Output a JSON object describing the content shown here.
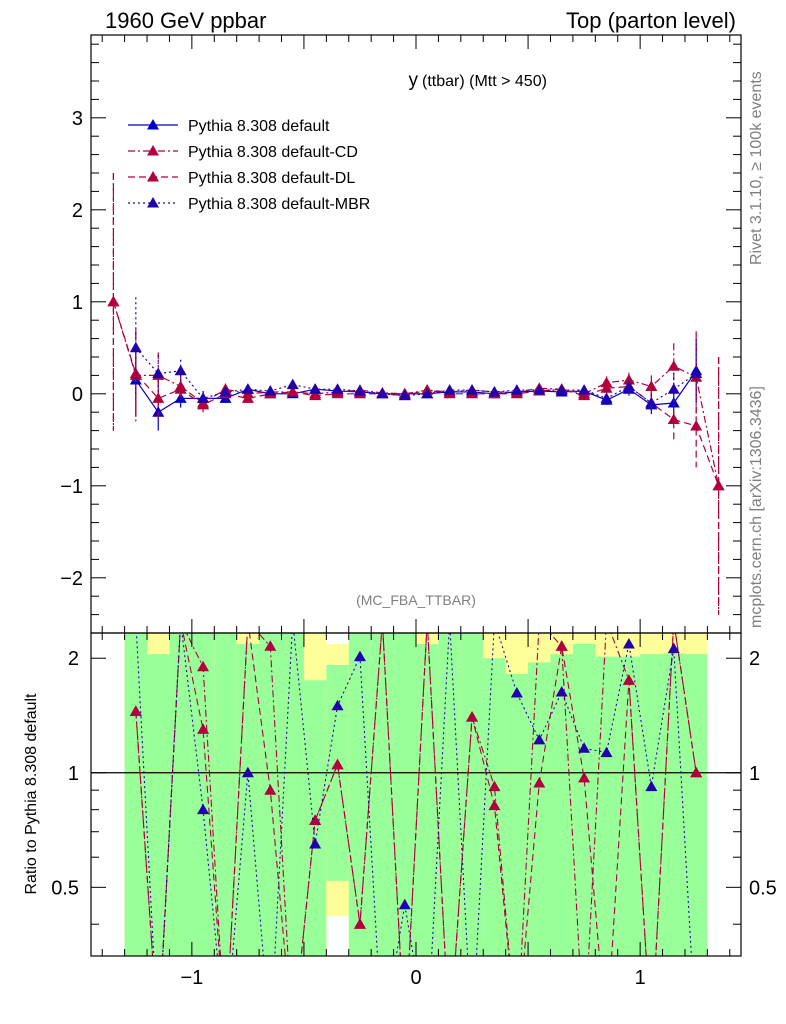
{
  "header": {
    "left": "1960 GeV ppbar",
    "right": "Top (parton level)"
  },
  "side_labels": {
    "rivet": "Rivet 3.1.10, ≥ 100k events",
    "mcplots": "mcplots.cern.ch [arXiv:1306.3436]"
  },
  "chart_data": [
    {
      "type": "line",
      "title": "y (ttbar) (Mtt > 450)",
      "title_main": "y",
      "title_sub": "(ttbar) (Mtt > 450)",
      "watermark": "(MC_FBA_TTBAR)",
      "xlim": [
        -1.45,
        1.45
      ],
      "ylim": [
        -2.6,
        3.9
      ],
      "x_ticks": [
        -1,
        0,
        1
      ],
      "x_tick_labels": [
        "−1",
        "0",
        "1"
      ],
      "y_ticks": [
        -2,
        -1,
        0,
        1,
        2,
        3
      ],
      "y_tick_labels": [
        "−2",
        "−1",
        "0",
        "1",
        "2",
        "3"
      ],
      "legend_position": "top-left",
      "series": [
        {
          "name": "Pythia 8.308 default",
          "color": "#0000cc",
          "style": "solid",
          "x": [
            -1.25,
            -1.15,
            -1.05,
            -0.95,
            -0.85,
            -0.75,
            -0.65,
            -0.55,
            -0.45,
            -0.35,
            -0.25,
            -0.15,
            -0.05,
            0.05,
            0.15,
            0.25,
            0.35,
            0.45,
            0.55,
            0.65,
            0.75,
            0.85,
            0.95,
            1.05,
            1.15,
            1.25
          ],
          "y": [
            0.15,
            -0.2,
            -0.05,
            -0.05,
            -0.05,
            0.05,
            0.0,
            0.0,
            0.05,
            0.03,
            0.02,
            0.0,
            0.0,
            0.0,
            0.02,
            0.02,
            0.0,
            0.02,
            0.03,
            0.02,
            0.03,
            -0.07,
            0.05,
            -0.12,
            -0.1,
            0.25
          ],
          "err": [
            0.4,
            0.2,
            0.1,
            0.08,
            0.05,
            0.05,
            0.04,
            0.04,
            0.03,
            0.03,
            0.03,
            0.03,
            0.03,
            0.03,
            0.03,
            0.03,
            0.03,
            0.03,
            0.04,
            0.04,
            0.04,
            0.05,
            0.07,
            0.1,
            0.2,
            0.35
          ]
        },
        {
          "name": "Pythia 8.308 default-CD",
          "color": "#b0003e",
          "style": "dashdot",
          "x": [
            -1.35,
            -1.25,
            -1.15,
            -1.05,
            -0.95,
            -0.85,
            -0.75,
            -0.65,
            -0.55,
            -0.45,
            -0.35,
            -0.25,
            -0.15,
            -0.05,
            0.05,
            0.15,
            0.25,
            0.35,
            0.45,
            0.55,
            0.65,
            0.75,
            0.85,
            0.95,
            1.05,
            1.15,
            1.25,
            1.35
          ],
          "y": [
            1.0,
            0.2,
            0.2,
            0.08,
            -0.1,
            0.05,
            0.0,
            0.02,
            0.02,
            0.0,
            0.02,
            0.04,
            0.01,
            0.0,
            0.04,
            0.02,
            0.04,
            0.02,
            0.02,
            0.06,
            0.05,
            0.0,
            0.12,
            0.15,
            0.08,
            0.3,
            0.18,
            -1.0
          ],
          "err": [
            1.4,
            0.5,
            0.25,
            0.12,
            0.08,
            0.06,
            0.05,
            0.04,
            0.04,
            0.04,
            0.03,
            0.03,
            0.03,
            0.03,
            0.03,
            0.03,
            0.03,
            0.03,
            0.03,
            0.04,
            0.04,
            0.05,
            0.07,
            0.08,
            0.12,
            0.25,
            0.5,
            1.4
          ]
        },
        {
          "name": "Pythia 8.308 default-DL",
          "color": "#b0003e",
          "style": "dashed",
          "x": [
            -1.35,
            -1.25,
            -1.15,
            -1.05,
            -0.95,
            -0.85,
            -0.75,
            -0.65,
            -0.55,
            -0.45,
            -0.35,
            -0.25,
            -0.15,
            -0.05,
            0.05,
            0.15,
            0.25,
            0.35,
            0.45,
            0.55,
            0.65,
            0.75,
            0.85,
            0.95,
            1.05,
            1.15,
            1.25,
            1.35
          ],
          "y": [
            1.0,
            0.22,
            -0.05,
            0.05,
            -0.12,
            0.0,
            -0.05,
            0.0,
            0.02,
            -0.02,
            0.0,
            0.0,
            0.0,
            -0.02,
            0.04,
            0.0,
            0.0,
            0.0,
            0.0,
            0.03,
            0.05,
            -0.02,
            0.06,
            0.08,
            -0.1,
            -0.28,
            -0.35,
            -1.0
          ],
          "err": [
            1.4,
            0.45,
            0.22,
            0.12,
            0.08,
            0.06,
            0.05,
            0.04,
            0.04,
            0.04,
            0.03,
            0.03,
            0.03,
            0.03,
            0.03,
            0.03,
            0.03,
            0.03,
            0.03,
            0.04,
            0.04,
            0.05,
            0.07,
            0.08,
            0.12,
            0.22,
            0.45,
            1.4
          ]
        },
        {
          "name": "Pythia 8.308 default-MBR",
          "color": "#2200aa",
          "style": "dotted",
          "x": [
            -1.25,
            -1.15,
            -1.05,
            -0.95,
            -0.85,
            -0.75,
            -0.65,
            -0.55,
            -0.45,
            -0.35,
            -0.25,
            -0.15,
            -0.05,
            0.05,
            0.15,
            0.25,
            0.35,
            0.45,
            0.55,
            0.65,
            0.75,
            0.85,
            0.95,
            1.05,
            1.15,
            1.25
          ],
          "y": [
            0.5,
            0.22,
            0.25,
            -0.05,
            0.02,
            0.05,
            0.03,
            0.1,
            0.05,
            0.05,
            0.03,
            0.0,
            -0.02,
            0.0,
            0.04,
            0.04,
            0.02,
            0.04,
            0.04,
            0.04,
            0.04,
            -0.05,
            0.08,
            -0.1,
            0.05,
            0.22
          ],
          "err": [
            0.55,
            0.2,
            0.12,
            0.08,
            0.05,
            0.05,
            0.04,
            0.04,
            0.04,
            0.03,
            0.03,
            0.03,
            0.03,
            0.03,
            0.03,
            0.03,
            0.03,
            0.03,
            0.04,
            0.04,
            0.04,
            0.05,
            0.07,
            0.1,
            0.18,
            0.38
          ]
        }
      ]
    },
    {
      "type": "line",
      "ylabel": "Ratio to Pythia 8.308 default",
      "xlim": [
        -1.45,
        1.45
      ],
      "ylim": [
        0.33,
        2.33
      ],
      "x_ticks": [
        -1,
        0,
        1
      ],
      "x_tick_labels": [
        "−1",
        "0",
        "1"
      ],
      "y_ticks": [
        0.5,
        1,
        2
      ],
      "y_tick_labels": [
        "0.5",
        "1",
        "2"
      ],
      "reference": 1,
      "bands": {
        "x_edges": [
          -1.3,
          -1.2,
          -1.1,
          -1.0,
          -0.9,
          -0.8,
          -0.7,
          -0.6,
          -0.5,
          -0.4,
          -0.3,
          -0.2,
          -0.1,
          0.0,
          0.1,
          0.2,
          0.3,
          0.4,
          0.5,
          0.6,
          0.7,
          0.8,
          0.9,
          1.0,
          1.1,
          1.2,
          1.3
        ],
        "yellow_hi": [
          2.33,
          2.33,
          2.33,
          2.33,
          2.33,
          2.33,
          2.33,
          2.33,
          2.33,
          2.18,
          2.33,
          2.33,
          2.33,
          2.33,
          2.33,
          2.33,
          2.33,
          2.33,
          2.33,
          2.33,
          2.33,
          2.33,
          2.33,
          2.33,
          2.33,
          2.33
        ],
        "yellow_lo": [
          0.33,
          0.33,
          0.33,
          0.33,
          0.33,
          0.33,
          0.33,
          0.33,
          0.33,
          0.42,
          0.33,
          0.33,
          0.33,
          0.33,
          0.33,
          0.33,
          0.33,
          0.33,
          0.33,
          0.33,
          0.33,
          0.33,
          0.33,
          0.33,
          0.33,
          0.33
        ],
        "green_hi": [
          2.33,
          2.05,
          2.33,
          2.33,
          2.33,
          2.18,
          2.33,
          2.33,
          1.75,
          1.92,
          2.33,
          2.33,
          2.33,
          2.18,
          2.33,
          2.33,
          2.0,
          1.82,
          1.95,
          2.05,
          2.18,
          2.02,
          2.02,
          2.05,
          2.06,
          2.05
        ],
        "green_lo": [
          0.33,
          0.33,
          0.33,
          0.33,
          0.33,
          0.33,
          0.33,
          0.33,
          0.33,
          0.52,
          0.33,
          0.33,
          0.33,
          0.33,
          0.33,
          0.33,
          0.33,
          0.33,
          0.33,
          0.33,
          0.33,
          0.33,
          0.33,
          0.33,
          0.33,
          0.33
        ]
      },
      "series": [
        {
          "name": "Pythia 8.308 default-CD",
          "color": "#b0003e",
          "style": "dashdot",
          "x": [
            -1.25,
            -1.15,
            -1.05,
            -0.95,
            -0.85,
            -0.75,
            -0.65,
            -0.55,
            -0.45,
            -0.35,
            -0.25,
            -0.15,
            -0.05,
            0.05,
            0.15,
            0.25,
            0.35,
            0.45,
            0.55,
            0.65,
            0.75,
            0.85,
            0.95,
            1.05,
            1.15,
            1.25
          ],
          "y": [
            1.45,
            0.2,
            2.5,
            1.9,
            0.2,
            2.5,
            2.15,
            0.2,
            0.75,
            1.05,
            0.4,
            2.5,
            0.2,
            2.5,
            0.2,
            1.4,
            0.92,
            0.2,
            2.5,
            2.15,
            0.2,
            2.5,
            1.75,
            0.2,
            2.5,
            1.0
          ]
        },
        {
          "name": "Pythia 8.308 default-DL",
          "color": "#b0003e",
          "style": "dashed",
          "x": [
            -1.25,
            -1.15,
            -1.05,
            -0.95,
            -0.85,
            -0.75,
            -0.65,
            -0.55,
            -0.45,
            -0.35,
            -0.25,
            -0.15,
            -0.05,
            0.05,
            0.15,
            0.25,
            0.35,
            0.45,
            0.55,
            0.65,
            0.75,
            0.85,
            0.95,
            1.05,
            1.15,
            1.25
          ],
          "y": [
            1.45,
            0.2,
            2.5,
            1.3,
            0.2,
            2.5,
            0.9,
            0.2,
            0.75,
            1.05,
            0.4,
            2.5,
            0.2,
            2.5,
            0.2,
            1.4,
            0.82,
            0.2,
            0.94,
            2.15,
            0.97,
            0.2,
            1.75,
            0.2,
            2.5,
            1.0
          ]
        },
        {
          "name": "Pythia 8.308 default-MBR",
          "color": "#2200aa",
          "style": "dotted",
          "x": [
            -1.25,
            -1.15,
            -1.05,
            -0.95,
            -0.85,
            -0.75,
            -0.65,
            -0.55,
            -0.45,
            -0.35,
            -0.25,
            -0.15,
            -0.05,
            0.05,
            0.15,
            0.25,
            0.35,
            0.45,
            0.55,
            0.65,
            0.75,
            0.85,
            0.95,
            1.05,
            1.15,
            1.25
          ],
          "y": [
            2.5,
            0.2,
            2.5,
            0.8,
            0.2,
            1.0,
            0.2,
            2.5,
            0.65,
            1.5,
            2.02,
            0.2,
            0.45,
            0.2,
            2.5,
            0.2,
            2.5,
            1.62,
            1.22,
            1.63,
            1.16,
            1.13,
            2.18,
            0.92,
            2.12,
            0.2
          ]
        }
      ]
    }
  ]
}
